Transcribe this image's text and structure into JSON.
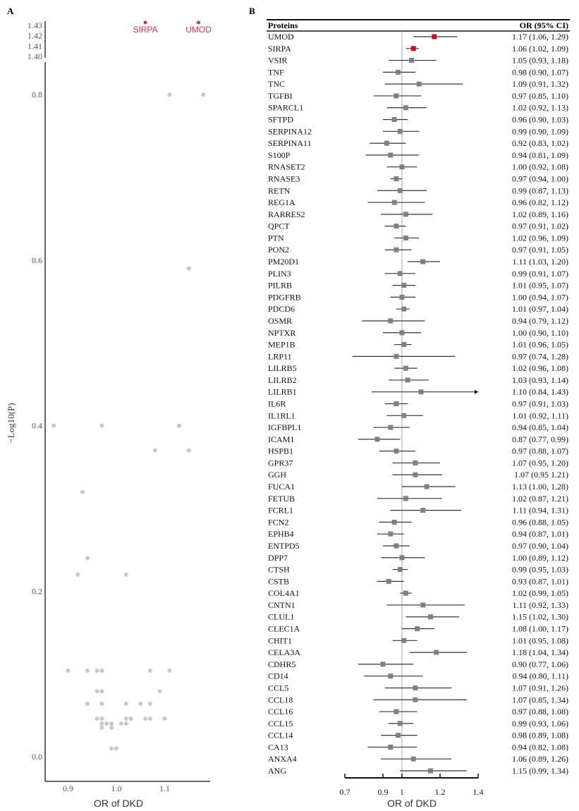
{
  "chart_data": [
    {
      "type": "scatter",
      "panel_label": "A",
      "xlabel": "OR of DKD",
      "ylabel": "−Log10(P)",
      "xlim": [
        0.855,
        1.195
      ],
      "ylim": [
        -0.03,
        0.83
      ],
      "ylim_upper_segment": [
        1.4,
        1.43
      ],
      "x_ticks": [
        "0.9",
        "1.0",
        "1.1"
      ],
      "y_ticks": [
        "0.0",
        "0.2",
        "0.4",
        "0.6",
        "0.8"
      ],
      "y_ticks_upper": [
        "1.40",
        "1.41",
        "1.42",
        "1.43"
      ],
      "point_color": "#c8c8c8",
      "highlight_color": "#d0304f",
      "highlighted": [
        {
          "label": "SIRPA",
          "x": 1.06,
          "y": 1.43
        },
        {
          "label": "UMOD",
          "x": 1.17,
          "y": 1.43
        }
      ],
      "points": [
        [
          1.11,
          0.8
        ],
        [
          1.18,
          0.8
        ],
        [
          1.15,
          0.59
        ],
        [
          0.87,
          0.4
        ],
        [
          0.97,
          0.4
        ],
        [
          1.13,
          0.4
        ],
        [
          1.08,
          0.37
        ],
        [
          1.15,
          0.37
        ],
        [
          0.93,
          0.32
        ],
        [
          0.94,
          0.24
        ],
        [
          0.92,
          0.22
        ],
        [
          1.02,
          0.22
        ],
        [
          0.9,
          0.104
        ],
        [
          0.94,
          0.104
        ],
        [
          0.96,
          0.104
        ],
        [
          0.97,
          0.104
        ],
        [
          1.07,
          0.104
        ],
        [
          1.11,
          0.104
        ],
        [
          0.96,
          0.079
        ],
        [
          0.97,
          0.079
        ],
        [
          1.09,
          0.079
        ],
        [
          0.94,
          0.064
        ],
        [
          0.97,
          0.064
        ],
        [
          1.02,
          0.064
        ],
        [
          1.05,
          0.064
        ],
        [
          1.07,
          0.064
        ],
        [
          0.96,
          0.046
        ],
        [
          0.97,
          0.046
        ],
        [
          1.02,
          0.046
        ],
        [
          1.03,
          0.046
        ],
        [
          1.06,
          0.046
        ],
        [
          1.07,
          0.046
        ],
        [
          1.1,
          0.046
        ],
        [
          0.97,
          0.04
        ],
        [
          0.98,
          0.04
        ],
        [
          0.99,
          0.04
        ],
        [
          1.01,
          0.04
        ],
        [
          1.02,
          0.04
        ],
        [
          0.97,
          0.035
        ],
        [
          0.99,
          0.035
        ],
        [
          0.99,
          0.01
        ],
        [
          1.0,
          0.01
        ]
      ]
    },
    {
      "type": "forest",
      "panel_label": "B",
      "col_protein": "Proteins",
      "col_or": "OR (95% CI)",
      "xlabel": "OR of DKD",
      "xlim": [
        0.7,
        1.4
      ],
      "x_ticks": [
        "0.7",
        "0.9",
        "1",
        "1.2",
        "1.4"
      ],
      "reference": 1,
      "highlight_color": "#c0102a",
      "marker_color": "#808080",
      "highlighted": [
        "UMOD",
        "SIRPA"
      ],
      "rows": [
        {
          "protein": "UMOD",
          "or": 1.17,
          "lo": 1.06,
          "hi": 1.29,
          "label": "1.17 (1.06, 1.29)"
        },
        {
          "protein": "SIRPA",
          "or": 1.06,
          "lo": 1.02,
          "hi": 1.09,
          "label": "1.06 (1.02, 1.09)"
        },
        {
          "protein": "VSIR",
          "or": 1.05,
          "lo": 0.93,
          "hi": 1.18,
          "label": "1.05 (0.93, 1.18)"
        },
        {
          "protein": "TNF",
          "or": 0.98,
          "lo": 0.9,
          "hi": 1.07,
          "label": "0.98 (0.90, 1.07)"
        },
        {
          "protein": "TNC",
          "or": 1.09,
          "lo": 0.91,
          "hi": 1.32,
          "label": "1.09 (0.91, 1.32)"
        },
        {
          "protein": "TGFBI",
          "or": 0.97,
          "lo": 0.85,
          "hi": 1.1,
          "label": "0.97 (0.85, 1.10)"
        },
        {
          "protein": "SPARCL1",
          "or": 1.02,
          "lo": 0.92,
          "hi": 1.13,
          "label": "1.02 (0.92, 1.13)"
        },
        {
          "protein": "SFTPD",
          "or": 0.96,
          "lo": 0.9,
          "hi": 1.03,
          "label": "0.96 (0.90, 1.03)"
        },
        {
          "protein": "SERPINA12",
          "or": 0.99,
          "lo": 0.9,
          "hi": 1.09,
          "label": "0.99 (0.90, 1.09)"
        },
        {
          "protein": "SERPINA11",
          "or": 0.92,
          "lo": 0.83,
          "hi": 1.02,
          "label": "0.92 (0.83, 1.02)"
        },
        {
          "protein": "S100P",
          "or": 0.94,
          "lo": 0.81,
          "hi": 1.09,
          "label": "0.94 (0.81, 1.09)"
        },
        {
          "protein": "RNASET2",
          "or": 1.0,
          "lo": 0.92,
          "hi": 1.08,
          "label": "1.00 (0.92, 1.08)"
        },
        {
          "protein": "RNASE3",
          "or": 0.97,
          "lo": 0.94,
          "hi": 1.0,
          "label": "0.97 (0.94, 1.00)"
        },
        {
          "protein": "RETN",
          "or": 0.99,
          "lo": 0.87,
          "hi": 1.13,
          "label": "0.99 (0.87, 1.13)"
        },
        {
          "protein": "REG1A",
          "or": 0.96,
          "lo": 0.82,
          "hi": 1.12,
          "label": "0.96 (0.82, 1.12)"
        },
        {
          "protein": "RARRES2",
          "or": 1.02,
          "lo": 0.89,
          "hi": 1.16,
          "label": "1.02 (0.89, 1.16)"
        },
        {
          "protein": "QPCT",
          "or": 0.97,
          "lo": 0.91,
          "hi": 1.02,
          "label": "0.97 (0.91, 1.02)"
        },
        {
          "protein": "PTN",
          "or": 1.02,
          "lo": 0.96,
          "hi": 1.09,
          "label": "1.02 (0.96, 1.09)"
        },
        {
          "protein": "PON2",
          "or": 0.97,
          "lo": 0.91,
          "hi": 1.05,
          "label": "0.97 (0.91, 1.05)"
        },
        {
          "protein": "PM20D1",
          "or": 1.11,
          "lo": 1.03,
          "hi": 1.2,
          "label": "1.11 (1.03, 1.20)"
        },
        {
          "protein": "PLIN3",
          "or": 0.99,
          "lo": 0.91,
          "hi": 1.07,
          "label": "0.99 (0.91, 1.07)"
        },
        {
          "protein": "PILRB",
          "or": 1.01,
          "lo": 0.95,
          "hi": 1.07,
          "label": "1.01 (0.95, 1.07)"
        },
        {
          "protein": "PDGFRB",
          "or": 1.0,
          "lo": 0.94,
          "hi": 1.07,
          "label": "1.00 (0.94, 1.07)"
        },
        {
          "protein": "PDCD6",
          "or": 1.01,
          "lo": 0.97,
          "hi": 1.04,
          "label": "1.01 (0.97, 1.04)"
        },
        {
          "protein": "OSMR",
          "or": 0.94,
          "lo": 0.79,
          "hi": 1.12,
          "label": "0.94 (0.79, 1.12)"
        },
        {
          "protein": "NPTXR",
          "or": 1.0,
          "lo": 0.9,
          "hi": 1.1,
          "label": "1.00 (0.90, 1.10)"
        },
        {
          "protein": "MEP1B",
          "or": 1.01,
          "lo": 0.96,
          "hi": 1.05,
          "label": "1.01 (0.96, 1.05)"
        },
        {
          "protein": "LRP11",
          "or": 0.97,
          "lo": 0.74,
          "hi": 1.28,
          "label": "0.97 (0.74, 1.28)"
        },
        {
          "protein": "LILRB5",
          "or": 1.02,
          "lo": 0.96,
          "hi": 1.08,
          "label": "1.02 (0.96, 1.08)"
        },
        {
          "protein": "LILRB2",
          "or": 1.03,
          "lo": 0.93,
          "hi": 1.14,
          "label": "1.03 (0.93, 1.14)"
        },
        {
          "protein": "LILRB1",
          "or": 1.1,
          "lo": 0.84,
          "hi": 1.43,
          "label": "1.10 (0.84, 1.43)"
        },
        {
          "protein": "IL6R",
          "or": 0.97,
          "lo": 0.91,
          "hi": 1.03,
          "label": "0.97 (0.91, 1.03)"
        },
        {
          "protein": "IL1RL1",
          "or": 1.01,
          "lo": 0.92,
          "hi": 1.11,
          "label": "1.01 (0.92, 1.11)"
        },
        {
          "protein": "IGFBPL1",
          "or": 0.94,
          "lo": 0.85,
          "hi": 1.04,
          "label": "0.94 (0.85, 1.04)"
        },
        {
          "protein": "ICAM1",
          "or": 0.87,
          "lo": 0.77,
          "hi": 0.99,
          "label": "0.87 (0.77, 0.99)"
        },
        {
          "protein": "HSPB1",
          "or": 0.97,
          "lo": 0.88,
          "hi": 1.07,
          "label": "0.97 (0.88, 1.07)"
        },
        {
          "protein": "GPR37",
          "or": 1.07,
          "lo": 0.95,
          "hi": 1.2,
          "label": "1.07 (0.95, 1.20)"
        },
        {
          "protein": "GGH",
          "or": 1.07,
          "lo": 0.95,
          "hi": 1.21,
          "label": "1.07 (0.95 1.21)"
        },
        {
          "protein": "FUCA1",
          "or": 1.13,
          "lo": 1.0,
          "hi": 1.28,
          "label": "1.13 (1.00, 1.28)"
        },
        {
          "protein": "FETUB",
          "or": 1.02,
          "lo": 0.87,
          "hi": 1.21,
          "label": "1.02 (0.87, 1.21)"
        },
        {
          "protein": "FCRL1",
          "or": 1.11,
          "lo": 0.94,
          "hi": 1.31,
          "label": "1.11 (0.94, 1.31)"
        },
        {
          "protein": "FCN2",
          "or": 0.96,
          "lo": 0.88,
          "hi": 1.05,
          "label": "0.96 (0.88, 1.05)"
        },
        {
          "protein": "EPHB4",
          "or": 0.94,
          "lo": 0.87,
          "hi": 1.01,
          "label": "0.94 (0.87, 1.01)"
        },
        {
          "protein": "ENTPD5",
          "or": 0.97,
          "lo": 0.9,
          "hi": 1.04,
          "label": "0.97 (0.90, 1.04)"
        },
        {
          "protein": "DPP7",
          "or": 1.0,
          "lo": 0.89,
          "hi": 1.12,
          "label": "1.00 (0.89, 1.12)"
        },
        {
          "protein": "CTSH",
          "or": 0.99,
          "lo": 0.95,
          "hi": 1.03,
          "label": "0.99 (0.95, 1.03)"
        },
        {
          "protein": "CSTB",
          "or": 0.93,
          "lo": 0.87,
          "hi": 1.01,
          "label": "0.93 (0.87, 1.01)"
        },
        {
          "protein": "COL4A1",
          "or": 1.02,
          "lo": 0.99,
          "hi": 1.05,
          "label": "1.02 (0.99, 1.05)"
        },
        {
          "protein": "CNTN1",
          "or": 1.11,
          "lo": 0.92,
          "hi": 1.33,
          "label": "1.11 (0.92, 1.33)"
        },
        {
          "protein": "CLUL1",
          "or": 1.15,
          "lo": 1.02,
          "hi": 1.3,
          "label": "1.15 (1.02, 1.30)"
        },
        {
          "protein": "CLEC1A",
          "or": 1.08,
          "lo": 1.0,
          "hi": 1.17,
          "label": "1.08 (1.00, 1.17)"
        },
        {
          "protein": "CHIT1",
          "or": 1.01,
          "lo": 0.95,
          "hi": 1.08,
          "label": "1.01 (0.95, 1.08)"
        },
        {
          "protein": "CELA3A",
          "or": 1.18,
          "lo": 1.04,
          "hi": 1.34,
          "label": "1.18 (1.04, 1.34)"
        },
        {
          "protein": "CDHR5",
          "or": 0.9,
          "lo": 0.77,
          "hi": 1.06,
          "label": "0.90 (0.77, 1.06)"
        },
        {
          "protein": "CD14",
          "or": 0.94,
          "lo": 0.8,
          "hi": 1.11,
          "label": "0.94 (0.80, 1.11)"
        },
        {
          "protein": "CCL5",
          "or": 1.07,
          "lo": 0.91,
          "hi": 1.26,
          "label": "1.07 (0.91, 1.26)"
        },
        {
          "protein": "CCL18",
          "or": 1.07,
          "lo": 0.85,
          "hi": 1.34,
          "label": "1.07 (0.85, 1.34)"
        },
        {
          "protein": "CCL16",
          "or": 0.97,
          "lo": 0.88,
          "hi": 1.08,
          "label": "0.97 (0.88, 1.08)"
        },
        {
          "protein": "CCL15",
          "or": 0.99,
          "lo": 0.93,
          "hi": 1.06,
          "label": "0.99 (0.93, 1.06)"
        },
        {
          "protein": "CCL14",
          "or": 0.98,
          "lo": 0.89,
          "hi": 1.08,
          "label": "0.98 (0.89, 1.08)"
        },
        {
          "protein": "CA13",
          "or": 0.94,
          "lo": 0.82,
          "hi": 1.08,
          "label": "0.94 (0.82, 1.08)"
        },
        {
          "protein": "ANXA4",
          "or": 1.06,
          "lo": 0.89,
          "hi": 1.26,
          "label": "1.06 (0.89, 1.26)"
        },
        {
          "protein": "ANG",
          "or": 1.15,
          "lo": 0.99,
          "hi": 1.34,
          "label": "1.15 (0.99, 1.34)"
        }
      ]
    }
  ]
}
